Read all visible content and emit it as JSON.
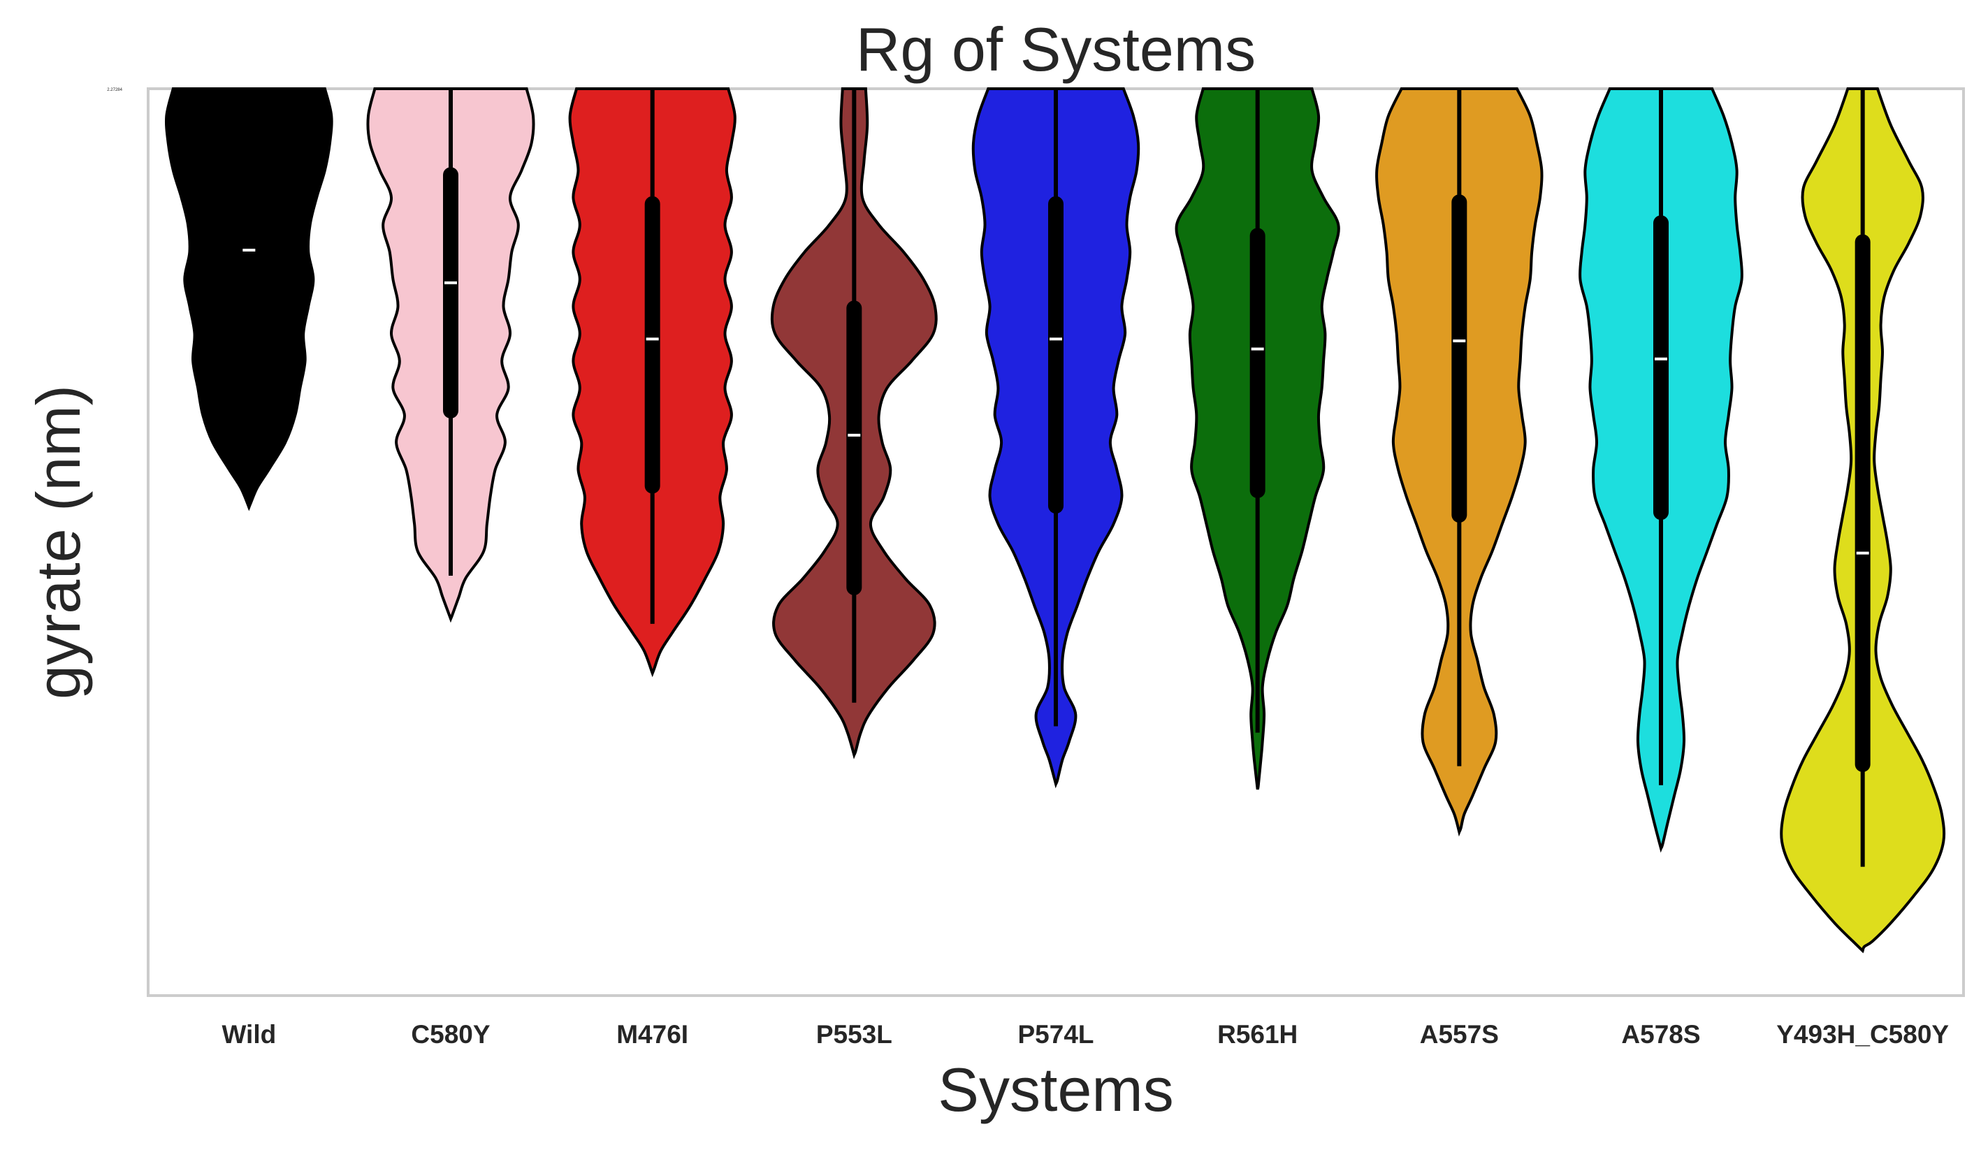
{
  "chart_data": {
    "type": "violin",
    "title": "Rg of Systems",
    "xlabel": "Systems",
    "ylabel": "gyrate (nm)",
    "y_tick_label": "2.27284",
    "grid": false,
    "categories": [
      "Wild",
      "C580Y",
      "M476I",
      "P553L",
      "P574L",
      "R561H",
      "A557S",
      "A578S",
      "Y493H_C580Y"
    ],
    "colors": [
      "#000000",
      "#f7c6d0",
      "#de1f1f",
      "#913737",
      "#1f22e0",
      "#0c6e0c",
      "#df9b22",
      "#1ddede",
      "#dedd1c"
    ],
    "outline_color": "#000000",
    "box_color": "#000000",
    "median_color": "#ffffff",
    "ylim": [
      1.0,
      0.0
    ],
    "series": [
      {
        "category": "Wild",
        "median": 0.178,
        "q1": 0.178,
        "q3": 0.178,
        "whisker_low": 0.178,
        "whisker_high": 0.178,
        "kde_min": 0.0,
        "kde_max": 0.457,
        "profile": [
          [
            0.0,
            0.92
          ],
          [
            0.03,
            1.0
          ],
          [
            0.06,
            0.98
          ],
          [
            0.09,
            0.92
          ],
          [
            0.12,
            0.82
          ],
          [
            0.15,
            0.74
          ],
          [
            0.18,
            0.72
          ],
          [
            0.21,
            0.78
          ],
          [
            0.24,
            0.72
          ],
          [
            0.27,
            0.66
          ],
          [
            0.3,
            0.68
          ],
          [
            0.33,
            0.62
          ],
          [
            0.36,
            0.56
          ],
          [
            0.39,
            0.44
          ],
          [
            0.42,
            0.24
          ],
          [
            0.44,
            0.1
          ],
          [
            0.457,
            0.02
          ]
        ]
      },
      {
        "category": "C580Y",
        "median": 0.214,
        "q1": 0.095,
        "q3": 0.355,
        "whisker_low": 0.0,
        "whisker_high": 0.537,
        "kde_min": 0.0,
        "kde_max": 0.58,
        "profile": [
          [
            0.0,
            0.92
          ],
          [
            0.03,
            1.0
          ],
          [
            0.06,
            0.98
          ],
          [
            0.09,
            0.86
          ],
          [
            0.12,
            0.72
          ],
          [
            0.15,
            0.82
          ],
          [
            0.18,
            0.74
          ],
          [
            0.21,
            0.7
          ],
          [
            0.24,
            0.64
          ],
          [
            0.27,
            0.72
          ],
          [
            0.3,
            0.62
          ],
          [
            0.33,
            0.7
          ],
          [
            0.36,
            0.56
          ],
          [
            0.39,
            0.66
          ],
          [
            0.42,
            0.54
          ],
          [
            0.45,
            0.48
          ],
          [
            0.48,
            0.44
          ],
          [
            0.51,
            0.4
          ],
          [
            0.54,
            0.18
          ],
          [
            0.56,
            0.1
          ],
          [
            0.58,
            0.02
          ]
        ]
      },
      {
        "category": "M476I",
        "median": 0.276,
        "q1": 0.127,
        "q3": 0.438,
        "whisker_low": 0.0,
        "whisker_high": 0.59,
        "kde_min": 0.0,
        "kde_max": 0.64,
        "profile": [
          [
            0.0,
            0.92
          ],
          [
            0.03,
            1.0
          ],
          [
            0.06,
            0.96
          ],
          [
            0.09,
            0.9
          ],
          [
            0.12,
            0.96
          ],
          [
            0.15,
            0.88
          ],
          [
            0.18,
            0.96
          ],
          [
            0.21,
            0.88
          ],
          [
            0.24,
            0.96
          ],
          [
            0.27,
            0.88
          ],
          [
            0.3,
            0.96
          ],
          [
            0.33,
            0.88
          ],
          [
            0.36,
            0.96
          ],
          [
            0.39,
            0.86
          ],
          [
            0.42,
            0.9
          ],
          [
            0.45,
            0.82
          ],
          [
            0.48,
            0.86
          ],
          [
            0.51,
            0.8
          ],
          [
            0.54,
            0.64
          ],
          [
            0.57,
            0.46
          ],
          [
            0.6,
            0.24
          ],
          [
            0.62,
            0.1
          ],
          [
            0.64,
            0.02
          ]
        ]
      },
      {
        "category": "P553L",
        "median": 0.382,
        "q1": 0.242,
        "q3": 0.55,
        "whisker_low": 0.0,
        "whisker_high": 0.677,
        "kde_min": 0.0,
        "kde_max": 0.73,
        "profile": [
          [
            0.0,
            0.14
          ],
          [
            0.04,
            0.16
          ],
          [
            0.08,
            0.12
          ],
          [
            0.12,
            0.1
          ],
          [
            0.15,
            0.3
          ],
          [
            0.18,
            0.6
          ],
          [
            0.21,
            0.84
          ],
          [
            0.24,
            0.98
          ],
          [
            0.27,
            0.96
          ],
          [
            0.3,
            0.7
          ],
          [
            0.33,
            0.4
          ],
          [
            0.36,
            0.3
          ],
          [
            0.39,
            0.34
          ],
          [
            0.42,
            0.44
          ],
          [
            0.45,
            0.36
          ],
          [
            0.48,
            0.2
          ],
          [
            0.51,
            0.36
          ],
          [
            0.54,
            0.62
          ],
          [
            0.57,
            0.92
          ],
          [
            0.6,
            0.96
          ],
          [
            0.63,
            0.72
          ],
          [
            0.66,
            0.42
          ],
          [
            0.69,
            0.18
          ],
          [
            0.71,
            0.08
          ],
          [
            0.73,
            0.02
          ]
        ]
      },
      {
        "category": "P574L",
        "median": 0.276,
        "q1": 0.127,
        "q3": 0.46,
        "whisker_low": 0.0,
        "whisker_high": 0.703,
        "kde_min": 0.0,
        "kde_max": 0.762,
        "profile": [
          [
            0.0,
            0.82
          ],
          [
            0.03,
            0.94
          ],
          [
            0.06,
            1.0
          ],
          [
            0.09,
            0.98
          ],
          [
            0.12,
            0.9
          ],
          [
            0.15,
            0.86
          ],
          [
            0.18,
            0.9
          ],
          [
            0.21,
            0.86
          ],
          [
            0.24,
            0.8
          ],
          [
            0.27,
            0.84
          ],
          [
            0.3,
            0.76
          ],
          [
            0.33,
            0.7
          ],
          [
            0.36,
            0.74
          ],
          [
            0.39,
            0.66
          ],
          [
            0.42,
            0.74
          ],
          [
            0.45,
            0.8
          ],
          [
            0.48,
            0.7
          ],
          [
            0.51,
            0.52
          ],
          [
            0.54,
            0.38
          ],
          [
            0.57,
            0.26
          ],
          [
            0.6,
            0.14
          ],
          [
            0.63,
            0.08
          ],
          [
            0.66,
            0.1
          ],
          [
            0.69,
            0.24
          ],
          [
            0.72,
            0.16
          ],
          [
            0.74,
            0.08
          ],
          [
            0.762,
            0.02
          ]
        ]
      },
      {
        "category": "R561H",
        "median": 0.287,
        "q1": 0.162,
        "q3": 0.443,
        "whisker_low": 0.0,
        "whisker_high": 0.71,
        "kde_min": 0.0,
        "kde_max": 0.768,
        "profile": [
          [
            0.0,
            0.66
          ],
          [
            0.03,
            0.74
          ],
          [
            0.06,
            0.7
          ],
          [
            0.09,
            0.66
          ],
          [
            0.12,
            0.8
          ],
          [
            0.15,
            0.98
          ],
          [
            0.18,
            0.92
          ],
          [
            0.21,
            0.84
          ],
          [
            0.24,
            0.78
          ],
          [
            0.27,
            0.82
          ],
          [
            0.3,
            0.8
          ],
          [
            0.33,
            0.78
          ],
          [
            0.36,
            0.74
          ],
          [
            0.39,
            0.76
          ],
          [
            0.42,
            0.8
          ],
          [
            0.45,
            0.7
          ],
          [
            0.48,
            0.62
          ],
          [
            0.51,
            0.54
          ],
          [
            0.54,
            0.44
          ],
          [
            0.57,
            0.36
          ],
          [
            0.6,
            0.22
          ],
          [
            0.63,
            0.12
          ],
          [
            0.66,
            0.06
          ],
          [
            0.69,
            0.08
          ],
          [
            0.72,
            0.06
          ],
          [
            0.74,
            0.04
          ],
          [
            0.768,
            0.01
          ]
        ]
      },
      {
        "category": "A557S",
        "median": 0.278,
        "q1": 0.125,
        "q3": 0.47,
        "whisker_low": 0.0,
        "whisker_high": 0.747,
        "kde_min": 0.0,
        "kde_max": 0.815,
        "profile": [
          [
            0.0,
            0.7
          ],
          [
            0.03,
            0.86
          ],
          [
            0.06,
            0.94
          ],
          [
            0.09,
            1.0
          ],
          [
            0.12,
            0.98
          ],
          [
            0.15,
            0.92
          ],
          [
            0.18,
            0.88
          ],
          [
            0.21,
            0.86
          ],
          [
            0.24,
            0.8
          ],
          [
            0.27,
            0.76
          ],
          [
            0.3,
            0.74
          ],
          [
            0.33,
            0.72
          ],
          [
            0.36,
            0.76
          ],
          [
            0.39,
            0.8
          ],
          [
            0.42,
            0.74
          ],
          [
            0.45,
            0.64
          ],
          [
            0.48,
            0.52
          ],
          [
            0.51,
            0.4
          ],
          [
            0.54,
            0.26
          ],
          [
            0.57,
            0.16
          ],
          [
            0.6,
            0.14
          ],
          [
            0.63,
            0.22
          ],
          [
            0.66,
            0.3
          ],
          [
            0.69,
            0.42
          ],
          [
            0.72,
            0.44
          ],
          [
            0.75,
            0.3
          ],
          [
            0.78,
            0.16
          ],
          [
            0.8,
            0.06
          ],
          [
            0.815,
            0.02
          ]
        ]
      },
      {
        "category": "A578S",
        "median": 0.298,
        "q1": 0.148,
        "q3": 0.467,
        "whisker_low": 0.0,
        "whisker_high": 0.768,
        "kde_min": 0.0,
        "kde_max": 0.833,
        "profile": [
          [
            0.0,
            0.62
          ],
          [
            0.03,
            0.76
          ],
          [
            0.06,
            0.86
          ],
          [
            0.09,
            0.92
          ],
          [
            0.12,
            0.9
          ],
          [
            0.15,
            0.92
          ],
          [
            0.18,
            0.96
          ],
          [
            0.21,
            0.98
          ],
          [
            0.24,
            0.9
          ],
          [
            0.27,
            0.86
          ],
          [
            0.3,
            0.84
          ],
          [
            0.33,
            0.86
          ],
          [
            0.36,
            0.82
          ],
          [
            0.39,
            0.78
          ],
          [
            0.42,
            0.82
          ],
          [
            0.45,
            0.8
          ],
          [
            0.48,
            0.68
          ],
          [
            0.51,
            0.56
          ],
          [
            0.54,
            0.44
          ],
          [
            0.57,
            0.34
          ],
          [
            0.6,
            0.26
          ],
          [
            0.63,
            0.2
          ],
          [
            0.66,
            0.22
          ],
          [
            0.69,
            0.26
          ],
          [
            0.72,
            0.28
          ],
          [
            0.75,
            0.24
          ],
          [
            0.78,
            0.16
          ],
          [
            0.81,
            0.08
          ],
          [
            0.833,
            0.02
          ]
        ]
      },
      {
        "category": "Y493H_C580Y",
        "median": 0.512,
        "q1": 0.169,
        "q3": 0.745,
        "whisker_low": 0.0,
        "whisker_high": 0.858,
        "kde_min": 0.0,
        "kde_max": 0.946,
        "profile": [
          [
            0.0,
            0.18
          ],
          [
            0.04,
            0.34
          ],
          [
            0.08,
            0.56
          ],
          [
            0.11,
            0.72
          ],
          [
            0.14,
            0.7
          ],
          [
            0.17,
            0.56
          ],
          [
            0.2,
            0.38
          ],
          [
            0.23,
            0.26
          ],
          [
            0.26,
            0.22
          ],
          [
            0.29,
            0.24
          ],
          [
            0.32,
            0.22
          ],
          [
            0.35,
            0.2
          ],
          [
            0.38,
            0.16
          ],
          [
            0.41,
            0.14
          ],
          [
            0.44,
            0.18
          ],
          [
            0.47,
            0.24
          ],
          [
            0.5,
            0.3
          ],
          [
            0.53,
            0.34
          ],
          [
            0.56,
            0.3
          ],
          [
            0.59,
            0.2
          ],
          [
            0.62,
            0.16
          ],
          [
            0.65,
            0.22
          ],
          [
            0.68,
            0.36
          ],
          [
            0.71,
            0.54
          ],
          [
            0.74,
            0.72
          ],
          [
            0.77,
            0.86
          ],
          [
            0.8,
            0.96
          ],
          [
            0.83,
            0.98
          ],
          [
            0.86,
            0.86
          ],
          [
            0.89,
            0.62
          ],
          [
            0.92,
            0.34
          ],
          [
            0.94,
            0.12
          ],
          [
            0.946,
            0.02
          ]
        ]
      }
    ]
  }
}
